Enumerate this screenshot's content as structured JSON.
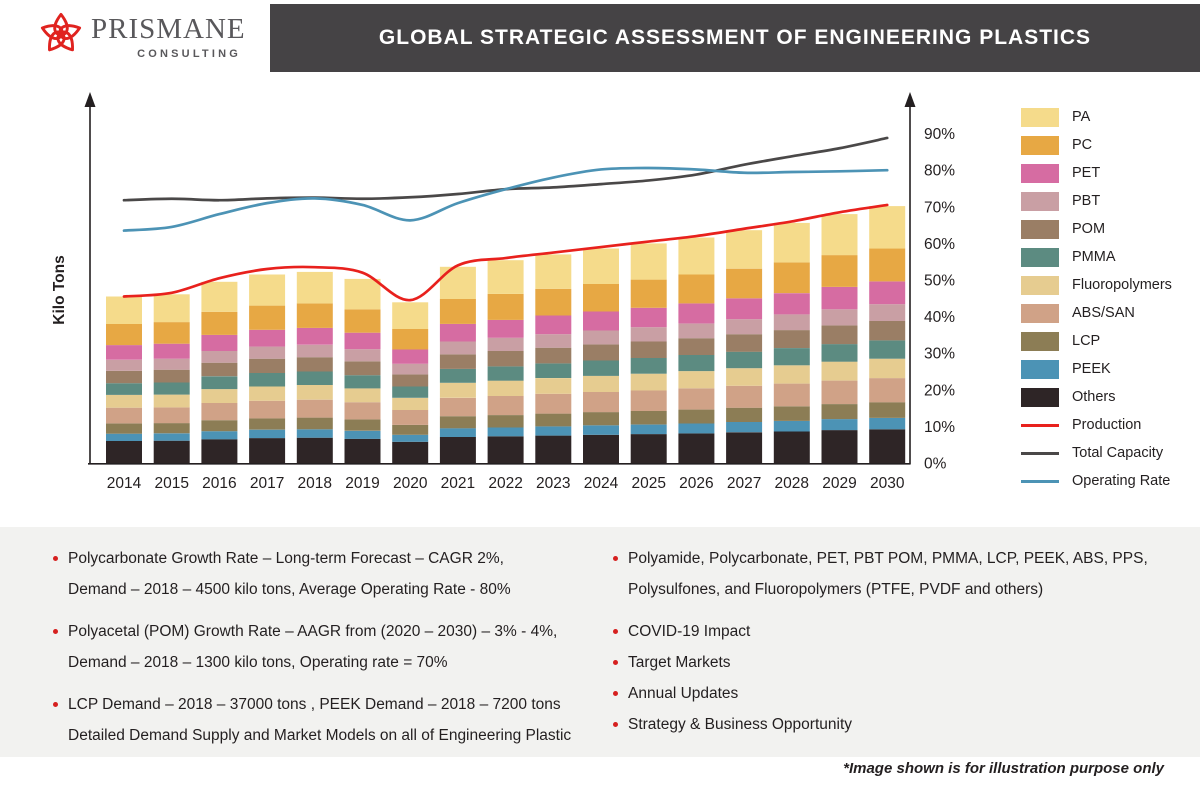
{
  "brand": {
    "name": "PRISMANE",
    "tagline": "CONSULTING",
    "logo_color": "#E0231F",
    "text_color": "#59585B"
  },
  "header": {
    "title": "GLOBAL STRATEGIC ASSESSMENT OF ENGINEERING PLASTICS",
    "bg_color": "#454345",
    "text_color": "#FFFFFF"
  },
  "chart_data": {
    "type": "bar",
    "subtype": "stacked-bars-with-overlay-lines",
    "title": "",
    "xlabel": "",
    "ylabel": "Kilo Tons",
    "x": [
      2014,
      2015,
      2016,
      2017,
      2018,
      2019,
      2020,
      2021,
      2022,
      2023,
      2024,
      2025,
      2026,
      2027,
      2028,
      2029,
      2030
    ],
    "y2_ticks": [
      0,
      10,
      20,
      30,
      40,
      50,
      60,
      70,
      80,
      90
    ],
    "y2_suffix": "%",
    "y2_range": [
      0,
      100
    ],
    "grid": false,
    "legend_position": "right",
    "stack_order": "series listed top-of-stack first; bars stacked in reverse order (Others at bottom)",
    "series": [
      {
        "name": "PA",
        "type": "bar",
        "color": "#F5DB8B",
        "values": [
          7.5,
          7.6,
          8.2,
          8.5,
          8.6,
          8.3,
          7.3,
          8.8,
          9.2,
          9.4,
          9.7,
          9.9,
          10.1,
          10.5,
          10.8,
          11.2,
          11.6
        ]
      },
      {
        "name": "PC",
        "type": "bar",
        "color": "#E7A844",
        "values": [
          5.8,
          5.9,
          6.3,
          6.6,
          6.7,
          6.4,
          5.6,
          6.8,
          7.1,
          7.3,
          7.5,
          7.7,
          7.9,
          8.1,
          8.4,
          8.7,
          9.0
        ]
      },
      {
        "name": "PET",
        "type": "bar",
        "color": "#D66CA2",
        "values": [
          4.0,
          4.1,
          4.4,
          4.6,
          4.6,
          4.5,
          3.9,
          4.8,
          4.9,
          5.1,
          5.2,
          5.3,
          5.5,
          5.7,
          5.8,
          6.1,
          6.2
        ]
      },
      {
        "name": "PBT",
        "type": "bar",
        "color": "#C99FA4",
        "values": [
          3.0,
          3.0,
          3.2,
          3.3,
          3.4,
          3.3,
          2.9,
          3.5,
          3.6,
          3.7,
          3.8,
          3.9,
          4.0,
          4.1,
          4.3,
          4.4,
          4.6
        ]
      },
      {
        "name": "POM",
        "type": "bar",
        "color": "#9A7E65",
        "values": [
          3.4,
          3.5,
          3.7,
          3.9,
          3.9,
          3.8,
          3.3,
          4.0,
          4.2,
          4.3,
          4.4,
          4.5,
          4.6,
          4.8,
          4.9,
          5.1,
          5.3
        ]
      },
      {
        "name": "PMMA",
        "type": "bar",
        "color": "#5C8B81",
        "values": [
          3.2,
          3.3,
          3.5,
          3.7,
          3.7,
          3.6,
          3.1,
          3.8,
          3.9,
          4.0,
          4.2,
          4.3,
          4.4,
          4.5,
          4.7,
          4.8,
          5.0
        ]
      },
      {
        "name": "Fluoropolymers",
        "type": "bar",
        "color": "#E6CC90",
        "values": [
          3.5,
          3.5,
          3.8,
          3.9,
          4.0,
          3.8,
          3.3,
          4.1,
          4.2,
          4.3,
          4.4,
          4.6,
          4.7,
          4.8,
          5.0,
          5.2,
          5.3
        ]
      },
      {
        "name": "ABS/SAN",
        "type": "bar",
        "color": "#D0A287",
        "values": [
          4.3,
          4.3,
          4.7,
          4.8,
          4.9,
          4.7,
          4.1,
          5.0,
          5.2,
          5.4,
          5.5,
          5.6,
          5.8,
          6.0,
          6.2,
          6.4,
          6.6
        ]
      },
      {
        "name": "LCP",
        "type": "bar",
        "color": "#8C7D55",
        "values": [
          2.8,
          2.8,
          3.0,
          3.1,
          3.2,
          3.1,
          2.7,
          3.3,
          3.4,
          3.5,
          3.6,
          3.7,
          3.8,
          3.9,
          4.0,
          4.1,
          4.3
        ]
      },
      {
        "name": "PEEK",
        "type": "bar",
        "color": "#4C93B5",
        "values": [
          2.0,
          2.0,
          2.2,
          2.3,
          2.3,
          2.2,
          1.9,
          2.4,
          2.4,
          2.5,
          2.6,
          2.6,
          2.7,
          2.8,
          2.9,
          3.0,
          3.1
        ]
      },
      {
        "name": "Others",
        "type": "bar",
        "color": "#2E2526",
        "values": [
          6.0,
          6.1,
          6.5,
          6.8,
          6.9,
          6.6,
          5.8,
          7.1,
          7.3,
          7.5,
          7.7,
          7.9,
          8.1,
          8.4,
          8.6,
          9.0,
          9.2
        ]
      },
      {
        "name": "Production",
        "type": "line",
        "color": "#E8211D",
        "values": [
          45.5,
          46.5,
          50.5,
          53.0,
          53.5,
          52.0,
          44.5,
          54.0,
          56.0,
          57.5,
          59.0,
          60.5,
          62.0,
          64.0,
          66.0,
          68.5,
          70.5
        ]
      },
      {
        "name": "Total Capacity",
        "type": "line",
        "color": "#4A4848",
        "values": [
          71.8,
          72.2,
          71.8,
          72.3,
          72.5,
          72.2,
          72.6,
          73.5,
          74.8,
          75.3,
          76.2,
          77.2,
          78.8,
          81.5,
          83.8,
          86.0,
          88.8
        ]
      },
      {
        "name": "Operating Rate",
        "type": "line",
        "color": "#4C93B5",
        "values": [
          63.5,
          64.5,
          68.0,
          71.0,
          72.3,
          70.5,
          66.3,
          71.0,
          74.8,
          78.0,
          80.2,
          80.6,
          80.2,
          79.3,
          79.5,
          79.7,
          80.0
        ]
      }
    ]
  },
  "bullets_left": [
    {
      "lines": [
        "Polycarbonate Growth Rate – Long-term Forecast – CAGR  2%,",
        "Demand – 2018 –  4500 kilo tons, Average Operating Rate - 80%"
      ]
    },
    {
      "lines": [
        "Polyacetal (POM) Growth Rate –  AAGR from (2020 – 2030) – 3% - 4%,",
        "Demand – 2018 – 1300 kilo tons, Operating rate = 70%"
      ]
    },
    {
      "lines": [
        "LCP Demand – 2018 – 37000 tons , PEEK Demand – 2018 –  7200 tons",
        "Detailed Demand Supply and Market Models on all of Engineering Plastic"
      ]
    }
  ],
  "bullets_right": [
    {
      "lines": [
        "Polyamide, Polycarbonate, PET, PBT POM, PMMA, LCP, PEEK, ABS, PPS,",
        "Polysulfones,  and Fluoropolymers  (PTFE, PVDF and others)"
      ]
    },
    {
      "lines": [
        "COVID-19 Impact"
      ]
    },
    {
      "lines": [
        "Target Markets"
      ]
    },
    {
      "lines": [
        "Annual Updates"
      ]
    },
    {
      "lines": [
        "Strategy & Business Opportunity"
      ]
    }
  ],
  "footer_note": "*Image shown is for illustration purpose only",
  "accent_colors": {
    "bullet_dot": "#D6201F",
    "axis": "#231F20",
    "panel_bg": "#F2F2F0"
  }
}
